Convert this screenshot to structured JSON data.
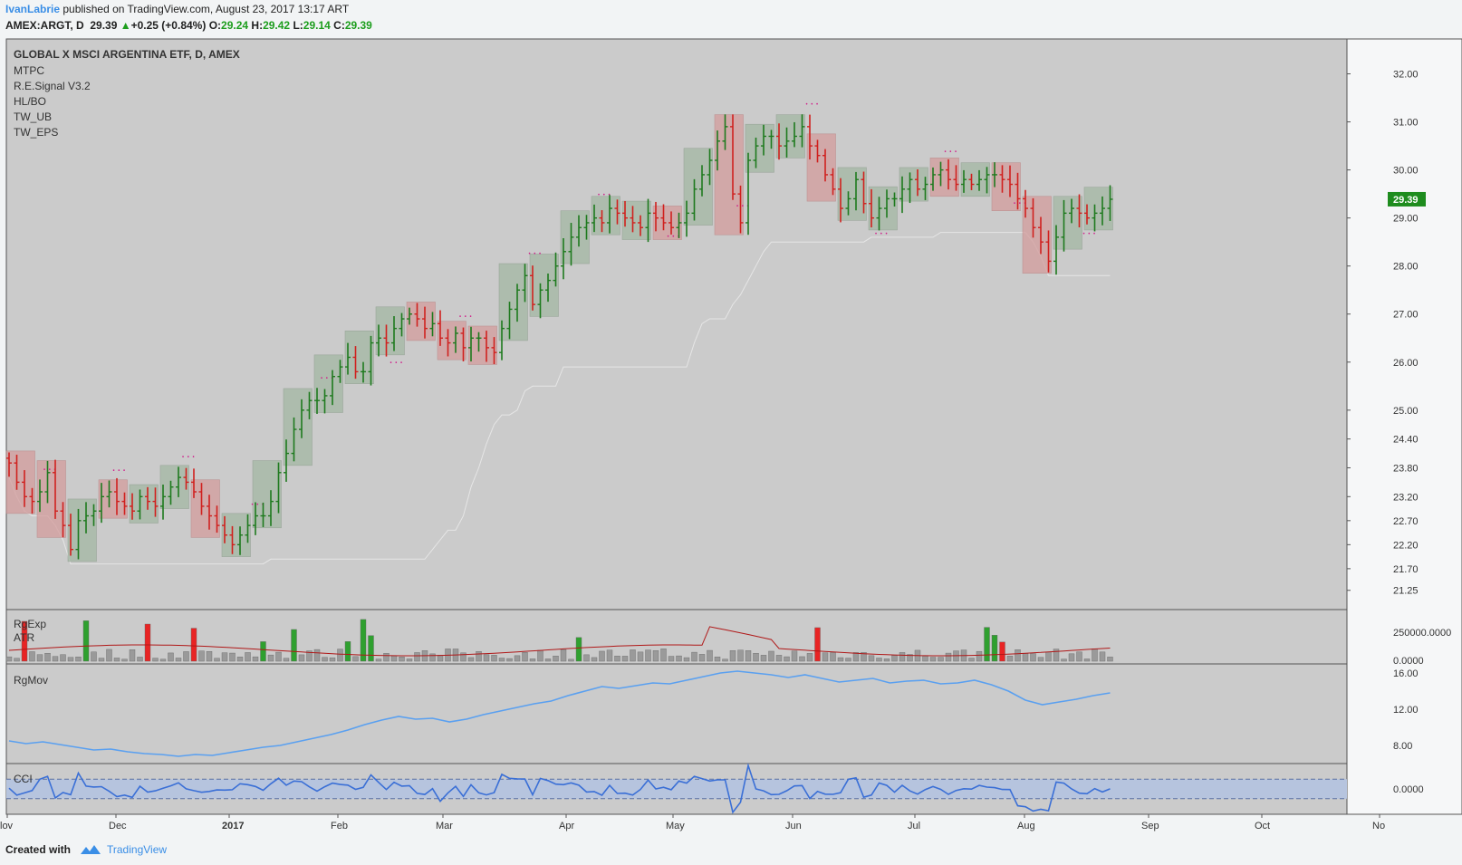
{
  "header": {
    "author": "IvanLabrie",
    "published_text": " published on TradingView.com, August 23, 2017 13:17 ART",
    "symbol": "AMEX:ARGT, D",
    "last": "29.39",
    "change": "+0.25 (+0.84%)",
    "open_label": "O:",
    "open": "29.24",
    "high_label": "H:",
    "high": "29.42",
    "low_label": "L:",
    "low": "29.14",
    "close_label": "C:",
    "close": "29.39"
  },
  "footer": {
    "created_with": "Created with",
    "brand": "TradingView"
  },
  "colors": {
    "panel_bg": "#cbcbcb",
    "up": "#1e7a1e",
    "down": "#d0201e",
    "price_tag": "#1e8c1e",
    "rgmov_line": "#5aa0f0",
    "cci_line": "#3a6fd6",
    "cci_band": "#b6c4de",
    "atr_line": "#b01818",
    "box_up": "#a3b7a3",
    "box_down": "#d49d9d"
  },
  "chart_data": [
    {
      "type": "line",
      "title": "GLOBAL X MSCI ARGENTINA ETF, D, AMEX",
      "indicators": [
        "MTPC",
        "R.E.Signal V3.2",
        "HL/BO",
        "TW_UB",
        "TW_EPS"
      ],
      "ylim": [
        21.0,
        32.5
      ],
      "y_ticks": [
        "32.00",
        "31.00",
        "30.00",
        "29.00",
        "28.00",
        "27.00",
        "26.00",
        "25.00",
        "24.40",
        "23.80",
        "23.20",
        "22.70",
        "22.20",
        "21.70",
        "21.25"
      ],
      "last_price": "29.39",
      "series": [
        {
          "values": [
            23.9,
            23.5,
            23.2,
            23.1,
            23.3,
            23.7,
            22.9,
            22.6,
            22.1,
            22.7,
            22.8,
            22.9,
            23.2,
            23.3,
            23.1,
            23.0,
            22.9,
            23.2,
            23.1,
            23.0,
            23.2,
            23.4,
            23.6,
            23.5,
            23.3,
            23.0,
            22.8,
            22.6,
            22.4,
            22.2,
            22.4,
            22.6,
            22.8,
            22.8,
            23.1,
            23.7,
            24.1,
            24.6,
            25.0,
            25.2,
            25.2,
            25.3,
            25.7,
            25.9,
            26.1,
            25.8,
            25.8,
            26.4,
            26.5,
            26.4,
            26.7,
            26.9,
            27.0,
            26.9,
            26.7,
            26.8,
            26.5,
            26.4,
            26.6,
            26.3,
            26.5,
            26.5,
            26.3,
            26.2,
            26.7,
            27.1,
            27.5,
            27.8,
            27.2,
            27.5,
            27.7,
            28.0,
            28.3,
            28.6,
            28.8,
            28.9,
            29.0,
            28.9,
            29.2,
            29.1,
            29.0,
            28.9,
            28.8,
            29.1,
            29.0,
            28.9,
            28.8,
            28.9,
            29.1,
            29.6,
            29.9,
            30.2,
            30.6,
            30.9,
            29.5,
            28.9,
            30.2,
            30.5,
            30.7,
            30.7,
            30.5,
            30.6,
            30.7,
            30.9,
            30.5,
            30.3,
            29.9,
            29.6,
            29.2,
            29.4,
            29.8,
            29.3,
            29.0,
            29.2,
            29.4,
            29.4,
            29.6,
            29.8,
            29.6,
            29.7,
            29.9,
            30.0,
            29.8,
            29.7,
            29.8,
            29.7,
            29.8,
            29.9,
            29.9,
            29.8,
            29.7,
            29.4,
            29.2,
            28.8,
            28.5,
            28.1,
            28.6,
            29.1,
            29.2,
            29.1,
            29.0,
            29.1,
            29.2,
            29.39
          ]
        }
      ]
    },
    {
      "type": "bar",
      "indicators": [
        "RgExp",
        "ATR"
      ],
      "ylim": [
        0,
        250000
      ],
      "y_ticks": [
        "250000.0000",
        "0.0000"
      ]
    },
    {
      "type": "line",
      "indicators": [
        "RgMov"
      ],
      "ylim": [
        6,
        17
      ],
      "y_ticks": [
        "16.00",
        "12.00",
        "8.00"
      ],
      "series": [
        {
          "values": [
            8.5,
            8.2,
            8.4,
            8.1,
            7.8,
            7.5,
            7.6,
            7.3,
            7.1,
            7.0,
            6.8,
            7.0,
            6.9,
            7.2,
            7.5,
            7.8,
            8.0,
            8.4,
            8.8,
            9.2,
            9.7,
            10.3,
            10.8,
            11.2,
            10.9,
            11.0,
            10.6,
            10.9,
            11.4,
            11.8,
            12.2,
            12.6,
            12.9,
            13.5,
            14.0,
            14.5,
            14.3,
            14.6,
            14.9,
            14.8,
            15.2,
            15.6,
            16.0,
            16.2,
            16.0,
            15.8,
            15.5,
            15.8,
            15.4,
            15.0,
            15.2,
            15.4,
            14.9,
            15.1,
            15.2,
            14.8,
            14.9,
            15.2,
            14.7,
            14.0,
            13.0,
            12.5,
            12.8,
            13.1,
            13.5,
            13.8
          ]
        }
      ]
    },
    {
      "type": "line",
      "indicators": [
        "CCI"
      ],
      "ylim": [
        -260,
        260
      ],
      "y_ticks": [
        "0.0000"
      ],
      "x_ticks": [
        "lov",
        "Dec",
        "2017",
        "Feb",
        "Mar",
        "Apr",
        "May",
        "Jun",
        "Jul",
        "Aug",
        "Sep",
        "Oct",
        "No"
      ]
    }
  ]
}
